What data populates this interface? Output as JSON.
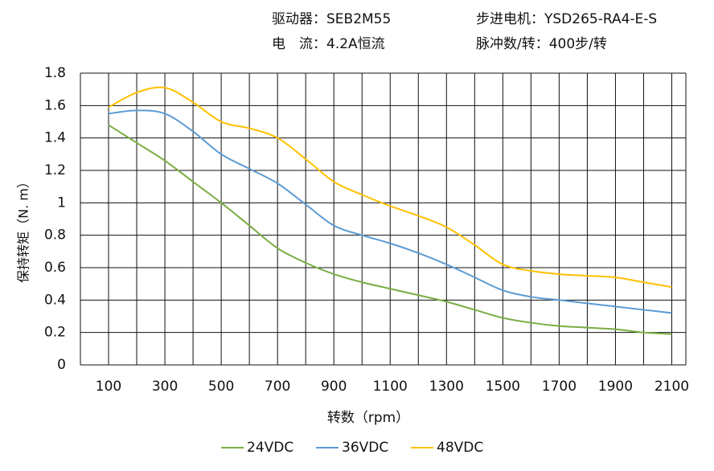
{
  "chart_data": {
    "type": "line",
    "annotations": [
      "驱动器：SEB2M55",
      "电　流：4.2A恒流",
      "步进电机：YSD265-RA4-E-S",
      "脉冲数/转：400步/转"
    ],
    "x_label": "转数（rpm）",
    "y_label": "保持转矩（N. m）",
    "x": [
      100,
      200,
      300,
      400,
      500,
      600,
      700,
      800,
      900,
      1000,
      1100,
      1200,
      1300,
      1400,
      1500,
      1600,
      1700,
      1800,
      1900,
      2000,
      2100
    ],
    "xlim": [
      0,
      2150
    ],
    "xticks": [
      100,
      300,
      500,
      700,
      900,
      1100,
      1300,
      1500,
      1700,
      1900,
      2100
    ],
    "ylim": [
      0,
      1.8
    ],
    "yticks": [
      0,
      0.2,
      0.4,
      0.6,
      0.8,
      1,
      1.2,
      1.4,
      1.6,
      1.8
    ],
    "grid": true,
    "series": [
      {
        "name": "24VDC",
        "color": "#7aad43",
        "values": [
          1.48,
          1.37,
          1.26,
          1.13,
          1.0,
          0.86,
          0.72,
          0.63,
          0.56,
          0.51,
          0.47,
          0.43,
          0.39,
          0.34,
          0.29,
          0.26,
          0.24,
          0.23,
          0.22,
          0.2,
          0.19
        ]
      },
      {
        "name": "36VDC",
        "color": "#5b9bd5",
        "values": [
          1.55,
          1.57,
          1.55,
          1.44,
          1.3,
          1.21,
          1.12,
          0.99,
          0.86,
          0.8,
          0.75,
          0.69,
          0.62,
          0.54,
          0.46,
          0.42,
          0.4,
          0.38,
          0.36,
          0.34,
          0.32
        ]
      },
      {
        "name": "48VDC",
        "color": "#ffc000",
        "values": [
          1.59,
          1.68,
          1.71,
          1.62,
          1.5,
          1.46,
          1.4,
          1.27,
          1.13,
          1.05,
          0.98,
          0.92,
          0.85,
          0.74,
          0.62,
          0.58,
          0.56,
          0.55,
          0.54,
          0.51,
          0.48
        ]
      }
    ]
  }
}
